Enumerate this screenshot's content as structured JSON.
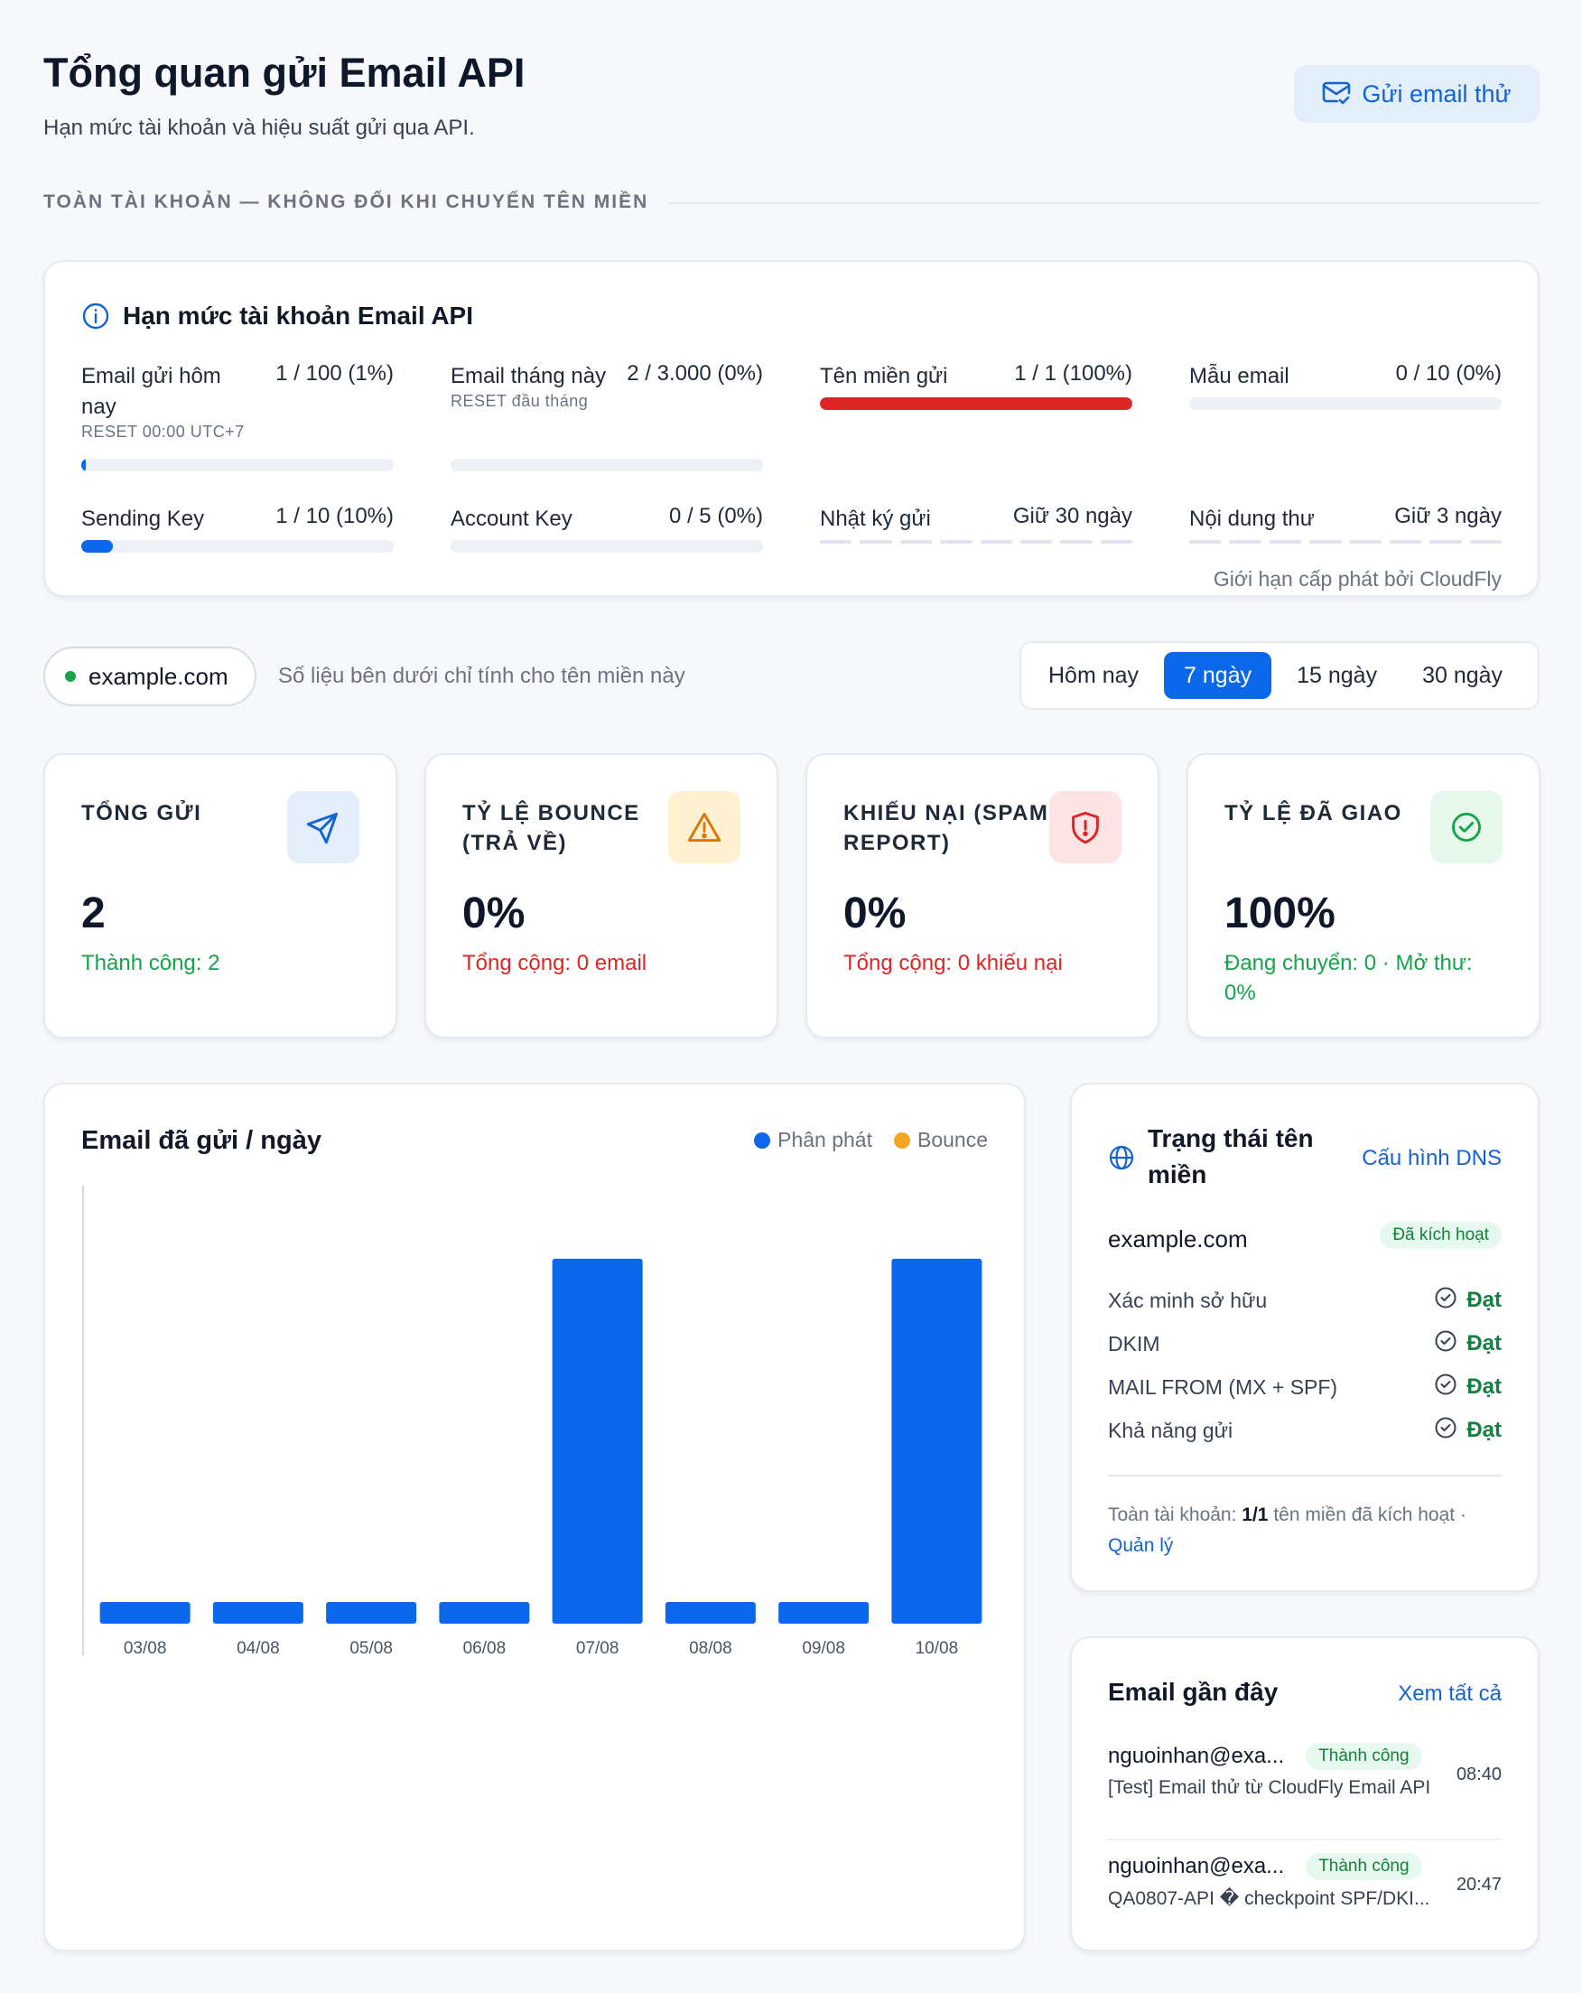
{
  "header": {
    "title": "Tổng quan gửi Email API",
    "subtitle": "Hạn mức tài khoản và hiệu suất gửi qua API.",
    "test_button": "Gửi email thử"
  },
  "section_label": "TOÀN TÀI KHOẢN — KHÔNG ĐỔI KHI CHUYỂN TÊN MIỀN",
  "quota": {
    "title": "Hạn mức tài khoản Email API",
    "note": "Giới hạn cấp phát bởi CloudFly",
    "items": [
      {
        "name": "Email gửi hôm nay",
        "reset": "RESET 00:00 UTC+7",
        "value": "1 / 100 (1%)",
        "progress": 0.01,
        "color": "#0b68ea"
      },
      {
        "name": "Email tháng này",
        "reset": "RESET đầu tháng",
        "value": "2 / 3.000 (0%)",
        "progress": 0.0,
        "color": "#0b68ea"
      },
      {
        "name": "Tên miền gửi",
        "reset": "",
        "value": "1 / 1 (100%)",
        "progress": 1.0,
        "color": "#dc2626"
      },
      {
        "name": "Mẫu email",
        "reset": "",
        "value": "0 / 10 (0%)",
        "progress": 0.0,
        "color": "#0b68ea"
      },
      {
        "name": "Sending Key",
        "reset": "",
        "value": "1 / 10 (10%)",
        "progress": 0.1,
        "color": "#0b68ea"
      },
      {
        "name": "Account Key",
        "reset": "",
        "value": "0 / 5 (0%)",
        "progress": 0.0,
        "color": "#0b68ea"
      },
      {
        "name": "Nhật ký gửi",
        "reset": "",
        "value": "Giữ 30 ngày"
      },
      {
        "name": "Nội dung thư",
        "reset": "",
        "value": "Giữ 3 ngày"
      }
    ]
  },
  "domain_chip": {
    "name": "example.com",
    "note": "Số liệu bên dưới chỉ tính cho tên miền này"
  },
  "range_tabs": [
    "Hôm nay",
    "7 ngày",
    "15 ngày",
    "30 ngày"
  ],
  "stats": [
    {
      "label": "TỔNG GỬI",
      "value": "2",
      "sub": "Thành công: 2",
      "sub_color": "#16a34a",
      "icon": "send-icon",
      "icon_bg": "#e4eefb",
      "icon_color": "#1463d6"
    },
    {
      "label": "TỶ LỆ BOUNCE (TRẢ VỀ)",
      "value": "0%",
      "sub": "Tổng cộng: 0 email",
      "sub_color": "#dc2626",
      "icon": "warning-icon",
      "icon_bg": "#fdf1d1",
      "icon_color": "#d97706"
    },
    {
      "label": "KHIẾU NẠI (SPAM REPORT)",
      "value": "0%",
      "sub": "Tổng cộng: 0 khiếu nại",
      "sub_color": "#dc2626",
      "icon": "shield-alert-icon",
      "icon_bg": "#fde4e4",
      "icon_color": "#dc2626"
    },
    {
      "label": "TỶ LỆ ĐÃ GIAO",
      "value": "100%",
      "sub": "Đang chuyển: 0 · Mở thư: 0%",
      "sub_color": "#16a34a",
      "icon": "check-circle-icon",
      "icon_bg": "#e6f7ec",
      "icon_color": "#16a34a"
    }
  ],
  "chart": {
    "title": "Email đã gửi / ngày",
    "legend": [
      "Phân phát",
      "Bounce"
    ],
    "colors": {
      "delivered": "#0b68ea",
      "bounce": "#f5a524"
    }
  },
  "chart_data": {
    "type": "bar",
    "categories": [
      "03/08",
      "04/08",
      "05/08",
      "06/08",
      "07/08",
      "08/08",
      "09/08",
      "10/08"
    ],
    "series": [
      {
        "name": "Phân phát",
        "values": [
          0,
          0,
          0,
          0,
          1,
          0,
          0,
          1
        ]
      },
      {
        "name": "Bounce",
        "values": [
          0,
          0,
          0,
          0,
          0,
          0,
          0,
          0
        ]
      }
    ],
    "ylim": [
      0,
      1.2
    ],
    "grid": false
  },
  "domain_status": {
    "title": "Trạng thái tên miền",
    "link": "Cấu hình DNS",
    "domain": "example.com",
    "badge": "Đã kích hoạt",
    "checks": [
      {
        "name": "Xác minh sở hữu",
        "status": "Đạt"
      },
      {
        "name": "DKIM",
        "status": "Đạt"
      },
      {
        "name": "MAIL FROM (MX + SPF)",
        "status": "Đạt"
      },
      {
        "name": "Khả năng gửi",
        "status": "Đạt"
      }
    ],
    "footer_prefix": "Toàn tài khoản:",
    "footer_count": "1/1",
    "footer_suffix": "tên miền đã kích hoạt ·",
    "footer_link": "Quản lý"
  },
  "recent": {
    "title": "Email gần đây",
    "link": "Xem tất cả",
    "items": [
      {
        "to": "nguoinhan@exa...",
        "status": "Thành công",
        "subject": "[Test] Email thử từ CloudFly Email API",
        "time": "08:40"
      },
      {
        "to": "nguoinhan@exa...",
        "status": "Thành công",
        "subject": "QA0807-API � checkpoint SPF/DKI...",
        "time": "20:47"
      }
    ]
  }
}
